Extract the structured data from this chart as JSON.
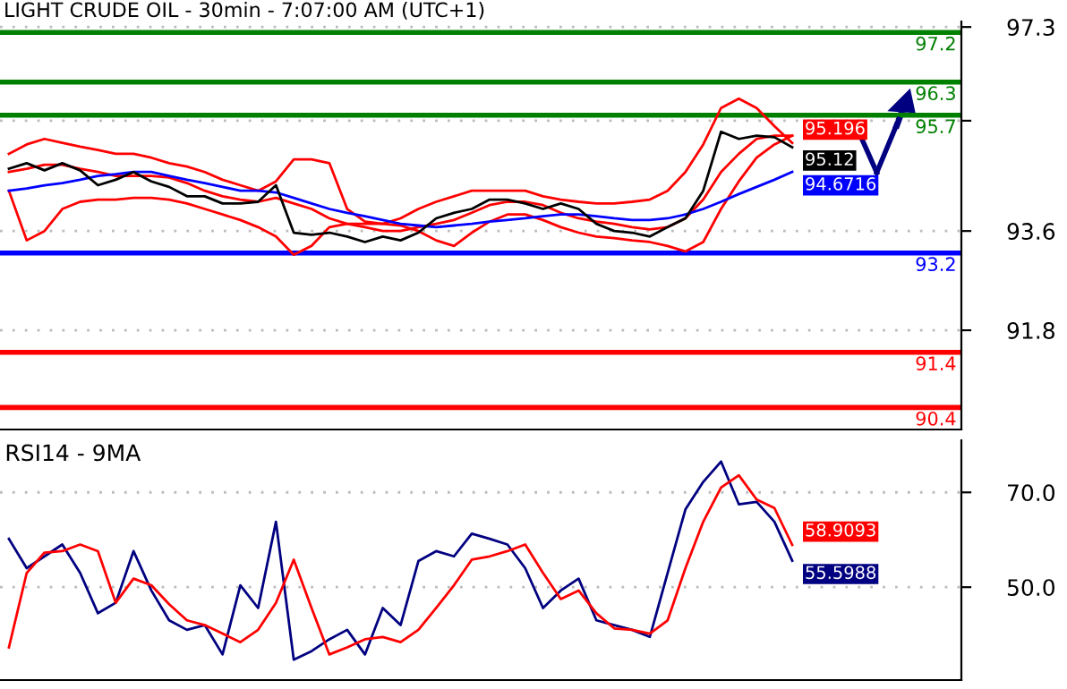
{
  "chart_data": [
    {
      "type": "line",
      "title": "LIGHT CRUDE OIL - 30min - 7:07:00 AM (UTC+1)",
      "categories": [
        null,
        null,
        null,
        null,
        null,
        null,
        null,
        null,
        null,
        null,
        null,
        null,
        null,
        null,
        null,
        null,
        null,
        null,
        null,
        null,
        null,
        null,
        null,
        null,
        null,
        null,
        null,
        null,
        null,
        null,
        null,
        null,
        null,
        null,
        null,
        null,
        null,
        null,
        null,
        null,
        null,
        null,
        null,
        null,
        null,
        null,
        null,
        null,
        null,
        null,
        null,
        null,
        null,
        null
      ],
      "series": [
        {
          "color": "#ff0000",
          "values": [
            95.0,
            95.17,
            95.27,
            95.2,
            95.13,
            95.07,
            95.0,
            95.0,
            94.93,
            94.83,
            94.77,
            94.67,
            94.53,
            94.43,
            94.33,
            94.5,
            94.9,
            94.9,
            94.83,
            94.0,
            93.77,
            93.73,
            93.83,
            94.0,
            94.13,
            94.23,
            94.33,
            94.33,
            94.33,
            94.33,
            94.23,
            94.17,
            94.13,
            94.1,
            94.1,
            94.13,
            94.17,
            94.33,
            94.67,
            95.17,
            95.83,
            96.0,
            95.83,
            95.5,
            95.196,
            null,
            null,
            null,
            null,
            null,
            null,
            null,
            null,
            null
          ],
          "value_labels": [
            null,
            null,
            null,
            null,
            null,
            null,
            null,
            null,
            null,
            null,
            null,
            null,
            null,
            null,
            null,
            null,
            null,
            null,
            null,
            null,
            null,
            null,
            null,
            null,
            null,
            null,
            null,
            null,
            null,
            null,
            null,
            null,
            null,
            null,
            null,
            null,
            null,
            null,
            null,
            null,
            null,
            null,
            null,
            null,
            "95.196",
            null,
            null,
            null,
            null,
            null,
            null,
            null,
            null,
            null
          ]
        },
        {
          "color": "#ff0000",
          "values": [
            94.67,
            94.73,
            94.8,
            94.8,
            94.73,
            94.67,
            94.6,
            94.6,
            94.6,
            94.57,
            94.47,
            94.33,
            94.23,
            94.17,
            94.13,
            94.2,
            94.1,
            94.0,
            93.83,
            93.73,
            93.67,
            93.6,
            93.6,
            93.67,
            93.73,
            93.8,
            93.93,
            94.07,
            94.13,
            94.13,
            94.07,
            93.93,
            93.83,
            93.77,
            93.73,
            93.67,
            93.63,
            93.67,
            93.83,
            94.17,
            94.67,
            95.0,
            95.27,
            95.33,
            95.33,
            null,
            null,
            null,
            null,
            null,
            null,
            null,
            null,
            null
          ]
        },
        {
          "color": "#ff0000",
          "values": [
            94.33,
            93.43,
            93.6,
            94.0,
            94.13,
            94.17,
            94.17,
            94.2,
            94.2,
            94.17,
            94.1,
            94.0,
            93.9,
            93.8,
            93.67,
            93.5,
            93.17,
            93.33,
            93.67,
            93.73,
            93.73,
            93.73,
            93.7,
            93.6,
            93.43,
            93.33,
            93.57,
            93.77,
            93.9,
            93.9,
            93.8,
            93.67,
            93.57,
            93.5,
            93.47,
            93.43,
            93.4,
            93.33,
            93.23,
            93.4,
            94.0,
            94.5,
            94.93,
            95.17,
            95.33,
            null,
            null,
            null,
            null,
            null,
            null,
            null,
            null,
            null
          ]
        },
        {
          "color": "#0000ff",
          "values": [
            94.33,
            94.37,
            94.43,
            94.47,
            94.53,
            94.6,
            94.63,
            94.67,
            94.67,
            94.6,
            94.53,
            94.47,
            94.4,
            94.33,
            94.33,
            94.3,
            94.2,
            94.1,
            94.0,
            93.93,
            93.87,
            93.8,
            93.73,
            93.7,
            93.67,
            93.7,
            93.73,
            93.77,
            93.8,
            93.83,
            93.87,
            93.9,
            93.9,
            93.87,
            93.83,
            93.8,
            93.8,
            93.83,
            93.9,
            94.0,
            94.13,
            94.27,
            94.4,
            94.53,
            94.6716,
            null,
            null,
            null,
            null,
            null,
            null,
            null,
            null,
            null
          ],
          "value_labels": [
            null,
            null,
            null,
            null,
            null,
            null,
            null,
            null,
            null,
            null,
            null,
            null,
            null,
            null,
            null,
            null,
            null,
            null,
            null,
            null,
            null,
            null,
            null,
            null,
            null,
            null,
            null,
            null,
            null,
            null,
            null,
            null,
            null,
            null,
            null,
            null,
            null,
            null,
            null,
            null,
            null,
            null,
            null,
            null,
            "94.6716",
            null,
            null,
            null,
            null,
            null,
            null,
            null,
            null,
            null
          ]
        },
        {
          "color": "#000000",
          "values": [
            94.73,
            94.83,
            94.7,
            94.83,
            94.7,
            94.43,
            94.53,
            94.67,
            94.5,
            94.4,
            94.23,
            94.23,
            94.1,
            94.1,
            94.13,
            94.43,
            93.57,
            93.53,
            93.57,
            93.5,
            93.4,
            93.5,
            93.43,
            93.57,
            93.83,
            93.93,
            94.0,
            94.17,
            94.17,
            94.1,
            94.0,
            94.1,
            94.0,
            93.73,
            93.6,
            93.57,
            93.5,
            93.67,
            93.83,
            94.33,
            95.4,
            95.27,
            95.33,
            95.3,
            95.12,
            null,
            null,
            null,
            null,
            null,
            null,
            null,
            null,
            null
          ],
          "value_labels": [
            null,
            null,
            null,
            null,
            null,
            null,
            null,
            null,
            null,
            null,
            null,
            null,
            null,
            null,
            null,
            null,
            null,
            null,
            null,
            null,
            null,
            null,
            null,
            null,
            null,
            null,
            null,
            null,
            null,
            null,
            null,
            null,
            null,
            null,
            null,
            null,
            null,
            null,
            null,
            null,
            null,
            null,
            null,
            null,
            "95.12",
            null,
            null,
            null,
            null,
            null,
            null,
            null,
            null,
            null
          ]
        }
      ],
      "ylim": [
        90.0,
        97.4
      ],
      "yticks": [
        97.3,
        {
          "value": 95.6,
          "label": null
        },
        93.6,
        91.8
      ],
      "ref_lines": [
        {
          "axis": "y",
          "value": 97.2,
          "label": "97.2",
          "color": "#008000"
        },
        {
          "axis": "y",
          "value": 96.3,
          "label": "96.3",
          "color": "#008000"
        },
        {
          "axis": "y",
          "value": 95.7,
          "label": "95.7",
          "color": "#008000"
        },
        {
          "axis": "y",
          "value": 93.2,
          "label": "93.2",
          "color": "#0000ff"
        },
        {
          "axis": "y",
          "value": 91.4,
          "label": "91.4",
          "color": "#ff0000"
        },
        {
          "axis": "y",
          "value": 90.4,
          "label": "90.4",
          "color": "#ff0000"
        }
      ],
      "grid": "y",
      "tick_labels": "y"
    },
    {
      "type": "line",
      "title": "RSI14 - 9MA",
      "categories": [
        null,
        null,
        null,
        null,
        null,
        null,
        null,
        null,
        null,
        null,
        null,
        null,
        null,
        null,
        null,
        null,
        null,
        null,
        null,
        null,
        null,
        null,
        null,
        null,
        null,
        null,
        null,
        null,
        null,
        null,
        null,
        null,
        null,
        null,
        null,
        null,
        null,
        null,
        null,
        null,
        null,
        null,
        null,
        null,
        null,
        null,
        null,
        null,
        null,
        null,
        null,
        null,
        null,
        null
      ],
      "series": [
        {
          "color": "#000080",
          "values": [
            60.2,
            54,
            56.5,
            59,
            53,
            44.5,
            46.7,
            57.6,
            49.3,
            43,
            41,
            42,
            35.8,
            50.4,
            45.6,
            63.8,
            34.7,
            36.5,
            39,
            41,
            35.8,
            45.6,
            42,
            55.5,
            57.6,
            56.5,
            61.3,
            60.2,
            59,
            54,
            45.6,
            49.3,
            51.8,
            43,
            42,
            41,
            39.5,
            53,
            66.4,
            72.2,
            76.5,
            67.5,
            68,
            63.8,
            55.5988,
            null,
            null,
            null,
            null,
            null,
            null,
            null,
            null,
            null
          ],
          "value_labels": [
            null,
            null,
            null,
            null,
            null,
            null,
            null,
            null,
            null,
            null,
            null,
            null,
            null,
            null,
            null,
            null,
            null,
            null,
            null,
            null,
            null,
            null,
            null,
            null,
            null,
            null,
            null,
            null,
            null,
            null,
            null,
            null,
            null,
            null,
            null,
            null,
            null,
            null,
            null,
            null,
            null,
            null,
            null,
            null,
            "55.5988",
            null,
            null,
            null,
            null,
            null,
            null,
            null,
            null,
            null
          ]
        },
        {
          "color": "#ff0000",
          "values": [
            37.3,
            53,
            57.3,
            57.6,
            59,
            57.6,
            46.7,
            51.8,
            50.4,
            46.4,
            43,
            42,
            40.2,
            38.4,
            41,
            46.7,
            55.8,
            45.6,
            35.8,
            37.3,
            39,
            39.5,
            38.4,
            41,
            45.6,
            50.4,
            55.8,
            56.5,
            57.6,
            59,
            53,
            47.5,
            49.3,
            44.5,
            41.3,
            41,
            40.2,
            43,
            54,
            63.8,
            71,
            73.6,
            68.5,
            66.7,
            58.9093,
            null,
            null,
            null,
            null,
            null,
            null,
            null,
            null,
            null
          ],
          "value_labels": [
            null,
            null,
            null,
            null,
            null,
            null,
            null,
            null,
            null,
            null,
            null,
            null,
            null,
            null,
            null,
            null,
            null,
            null,
            null,
            null,
            null,
            null,
            null,
            null,
            null,
            null,
            null,
            null,
            null,
            null,
            null,
            null,
            null,
            null,
            null,
            null,
            null,
            null,
            null,
            null,
            null,
            null,
            null,
            null,
            "58.9093",
            null,
            null,
            null,
            null,
            null,
            null,
            null,
            null,
            null
          ]
        }
      ],
      "ylim": [
        30.4,
        81
      ],
      "yticks": [
        {
          "value": 70,
          "label": "70.0"
        },
        {
          "value": 50,
          "label": "50.0"
        }
      ],
      "grid": "y",
      "tick_labels": "y"
    }
  ]
}
